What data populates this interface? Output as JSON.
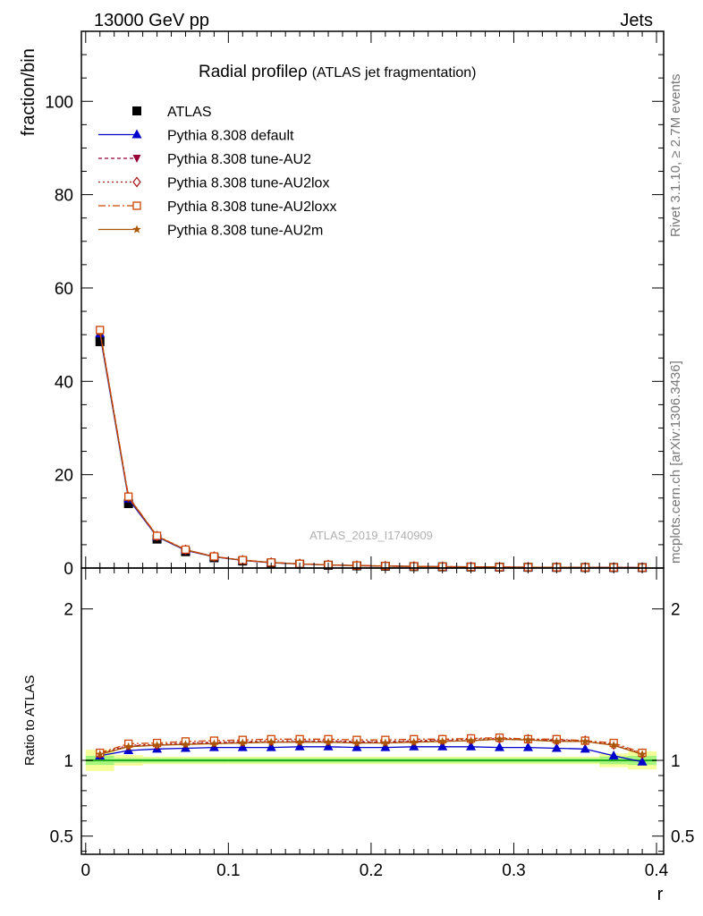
{
  "header": {
    "energy_label": "13000 GeV pp",
    "process_label": "Jets",
    "title": "Radial profile",
    "title_symbol": "ρ",
    "title_suffix": "(ATLAS jet fragmentation)",
    "side_rivet": "Rivet 3.1.10, ≥ 2.7M events",
    "side_mcplots": "mcplots.cern.ch [arXiv:1306.3436]",
    "analysis_id": "ATLAS_2019_I1740909"
  },
  "colors": {
    "data": "#000000",
    "default": "#0000cc",
    "au2": "#990033",
    "au2lox": "#aa1111",
    "au2loxx": "#cc4400",
    "au2m": "#aa5500",
    "band_inner": "#66ee66",
    "band_outer": "#f4ff99",
    "ratio_line": "#22aa22"
  },
  "chart_data": [
    {
      "type": "line",
      "panel": "main",
      "ylabel": "fraction/bin",
      "xlim": [
        -0.003,
        0.405
      ],
      "ylim": [
        0,
        115
      ],
      "yticks": [
        0,
        20,
        40,
        60,
        80,
        100
      ],
      "x": [
        0.01,
        0.03,
        0.05,
        0.07,
        0.09,
        0.11,
        0.13,
        0.15,
        0.17,
        0.19,
        0.21,
        0.23,
        0.25,
        0.27,
        0.29,
        0.31,
        0.33,
        0.35,
        0.37,
        0.39
      ],
      "legend_position": "top-left",
      "series": [
        {
          "key": "data",
          "name": "ATLAS",
          "marker": "square-filled",
          "values": [
            48.5,
            13.8,
            6.2,
            3.5,
            2.2,
            1.5,
            1.05,
            0.8,
            0.6,
            0.47,
            0.38,
            0.31,
            0.26,
            0.22,
            0.19,
            0.16,
            0.14,
            0.12,
            0.11,
            0.1
          ]
        },
        {
          "key": "default",
          "name": "Pythia 8.308 default",
          "marker": "triangle-up-filled",
          "dash": "",
          "values": [
            50.2,
            14.8,
            6.7,
            3.8,
            2.4,
            1.62,
            1.13,
            0.86,
            0.65,
            0.51,
            0.41,
            0.34,
            0.28,
            0.24,
            0.2,
            0.17,
            0.15,
            0.13,
            0.11,
            0.1
          ]
        },
        {
          "key": "au2",
          "name": "Pythia 8.308 tune-AU2",
          "marker": "triangle-down-filled",
          "dash": "4,3",
          "values": [
            50.7,
            15.1,
            6.8,
            3.9,
            2.45,
            1.67,
            1.17,
            0.89,
            0.67,
            0.52,
            0.42,
            0.35,
            0.29,
            0.25,
            0.21,
            0.18,
            0.16,
            0.14,
            0.12,
            0.1
          ]
        },
        {
          "key": "au2lox",
          "name": "Pythia 8.308 tune-AU2lox",
          "marker": "diamond-open",
          "dash": "2,3",
          "values": [
            50.8,
            15.2,
            6.85,
            3.92,
            2.46,
            1.68,
            1.18,
            0.9,
            0.68,
            0.53,
            0.43,
            0.35,
            0.29,
            0.25,
            0.21,
            0.18,
            0.16,
            0.14,
            0.12,
            0.1
          ]
        },
        {
          "key": "au2loxx",
          "name": "Pythia 8.308 tune-AU2loxx",
          "marker": "square-open",
          "dash": "8,3,2,3",
          "values": [
            51.0,
            15.3,
            6.9,
            3.95,
            2.48,
            1.7,
            1.2,
            0.91,
            0.69,
            0.54,
            0.44,
            0.36,
            0.3,
            0.25,
            0.21,
            0.18,
            0.16,
            0.14,
            0.12,
            0.1
          ]
        },
        {
          "key": "au2m",
          "name": "Pythia 8.308 tune-AU2m",
          "marker": "star-filled",
          "dash": "",
          "values": [
            50.6,
            15.1,
            6.8,
            3.88,
            2.44,
            1.66,
            1.16,
            0.88,
            0.67,
            0.52,
            0.42,
            0.35,
            0.29,
            0.25,
            0.21,
            0.18,
            0.16,
            0.14,
            0.12,
            0.1
          ]
        }
      ]
    },
    {
      "type": "line",
      "panel": "ratio",
      "ylabel": "Ratio to ATLAS",
      "xlabel": "r",
      "xlim": [
        -0.003,
        0.405
      ],
      "ylim": [
        0.38,
        2.27
      ],
      "yticks": [
        0.5,
        1,
        2
      ],
      "xticks": [
        0,
        0.1,
        0.2,
        0.3,
        0.4
      ],
      "x": [
        0.01,
        0.03,
        0.05,
        0.07,
        0.09,
        0.11,
        0.13,
        0.15,
        0.17,
        0.19,
        0.21,
        0.23,
        0.25,
        0.27,
        0.29,
        0.31,
        0.33,
        0.35,
        0.37,
        0.39
      ],
      "band": {
        "edges": [
          0.0,
          0.02,
          0.04,
          0.1,
          0.36,
          0.38,
          0.4
        ],
        "inner": [
          [
            0.97,
            1.03
          ],
          [
            0.985,
            1.015
          ],
          [
            0.985,
            1.015
          ],
          [
            0.985,
            1.015
          ],
          [
            0.975,
            1.025
          ],
          [
            0.97,
            1.03
          ]
        ],
        "outer": [
          [
            0.93,
            1.07
          ],
          [
            0.965,
            1.035
          ],
          [
            0.975,
            1.025
          ],
          [
            0.975,
            1.025
          ],
          [
            0.955,
            1.045
          ],
          [
            0.94,
            1.06
          ]
        ]
      },
      "series": [
        {
          "key": "default",
          "values": [
            1.03,
            1.065,
            1.075,
            1.08,
            1.085,
            1.085,
            1.085,
            1.09,
            1.09,
            1.085,
            1.085,
            1.09,
            1.09,
            1.09,
            1.085,
            1.085,
            1.08,
            1.075,
            1.03,
            0.99
          ]
        },
        {
          "key": "au2",
          "values": [
            1.04,
            1.095,
            1.1,
            1.11,
            1.115,
            1.12,
            1.12,
            1.125,
            1.125,
            1.12,
            1.12,
            1.125,
            1.13,
            1.13,
            1.14,
            1.135,
            1.13,
            1.125,
            1.1,
            1.04
          ]
        },
        {
          "key": "au2lox",
          "values": [
            1.045,
            1.1,
            1.105,
            1.115,
            1.12,
            1.125,
            1.13,
            1.13,
            1.13,
            1.125,
            1.125,
            1.13,
            1.135,
            1.14,
            1.145,
            1.14,
            1.135,
            1.13,
            1.105,
            1.045
          ]
        },
        {
          "key": "au2loxx",
          "values": [
            1.05,
            1.11,
            1.115,
            1.125,
            1.13,
            1.135,
            1.14,
            1.14,
            1.14,
            1.135,
            1.135,
            1.14,
            1.14,
            1.145,
            1.15,
            1.14,
            1.14,
            1.13,
            1.115,
            1.05
          ]
        },
        {
          "key": "au2m",
          "values": [
            1.04,
            1.09,
            1.1,
            1.105,
            1.11,
            1.115,
            1.12,
            1.12,
            1.12,
            1.115,
            1.115,
            1.12,
            1.125,
            1.13,
            1.14,
            1.135,
            1.125,
            1.125,
            1.1,
            1.04
          ]
        }
      ]
    }
  ]
}
